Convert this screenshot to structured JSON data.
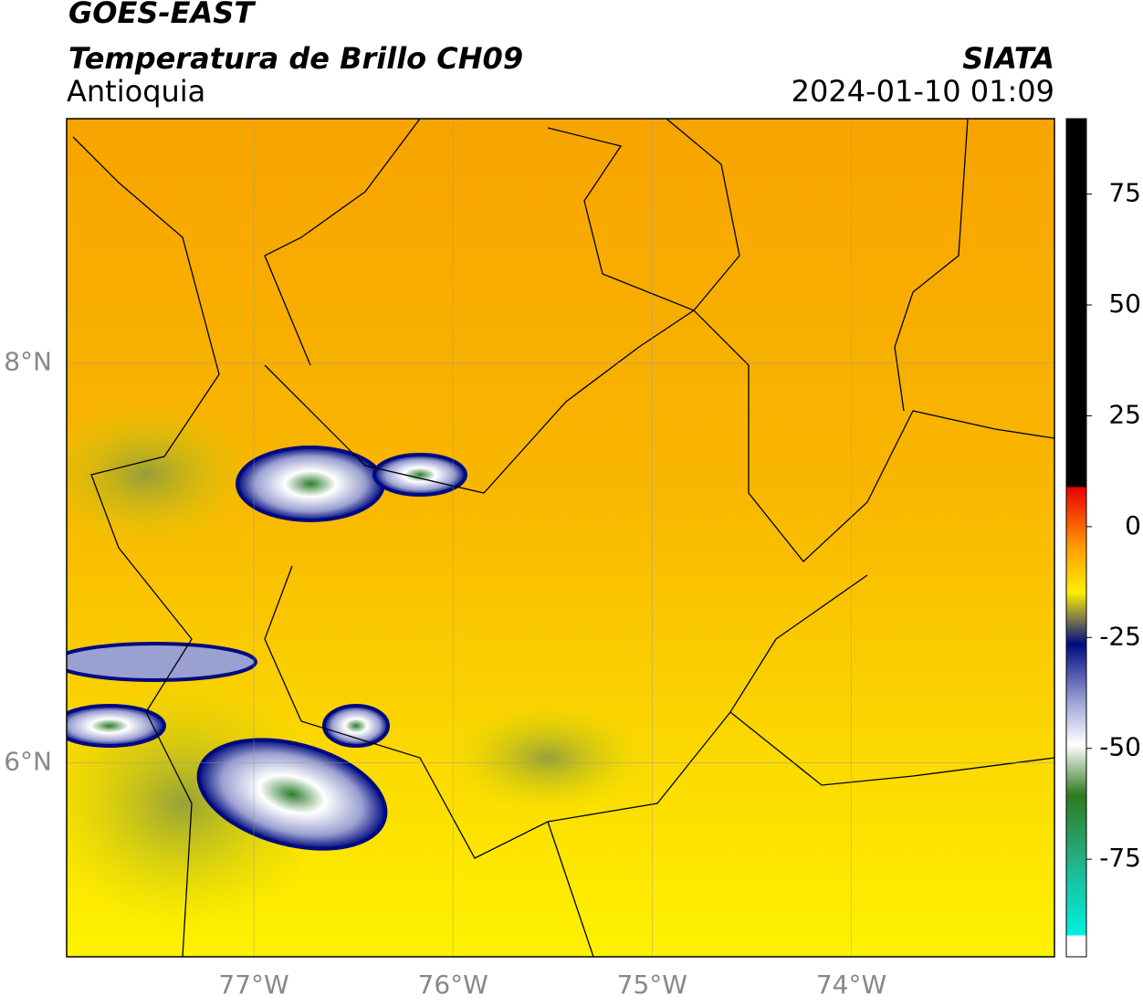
{
  "header": {
    "title": "GOES-EAST",
    "subtitle": "Temperatura de Brillo CH09",
    "region": "Antioquia",
    "source": "SIATA",
    "datetime": "2024-01-10 01:09"
  },
  "map": {
    "xlim": [
      -77.94,
      -72.98
    ],
    "ylim": [
      5.03,
      9.22
    ],
    "xticks": [
      {
        "value": -77,
        "label": "77°W"
      },
      {
        "value": -76,
        "label": "76°W"
      },
      {
        "value": -75,
        "label": "75°W"
      },
      {
        "value": -74,
        "label": "74°W"
      }
    ],
    "yticks": [
      {
        "value": 8,
        "label": "8°N"
      },
      {
        "value": 6,
        "label": "6°N"
      }
    ]
  },
  "colorbar": {
    "range": [
      -97,
      92
    ],
    "ticks": [
      75,
      50,
      25,
      0,
      -25,
      -50,
      -75
    ]
  }
}
